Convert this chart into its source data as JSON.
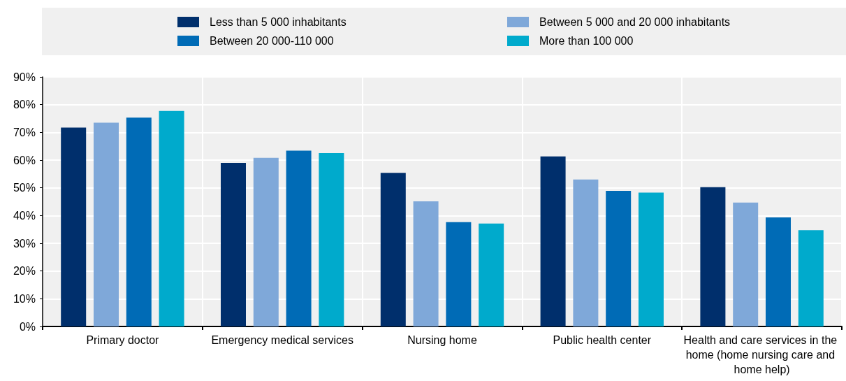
{
  "chart_data": {
    "type": "bar",
    "categories": [
      "Primary doctor",
      "Emergency medical services",
      "Nursing home",
      "Public health center",
      "Health and care services in the home (home nursing care and home help)"
    ],
    "series": [
      {
        "name": "Less than 5 000 inhabitants",
        "color": "#002f6c",
        "values": [
          71.7,
          59.0,
          55.4,
          61.3,
          50.2
        ]
      },
      {
        "name": "Between 5 000 and 20 000 inhabitants",
        "color": "#7fa8d9",
        "values": [
          73.5,
          60.8,
          45.1,
          53.0,
          44.7
        ]
      },
      {
        "name": "Between 20 000-110 000",
        "color": "#006bb6",
        "values": [
          75.3,
          63.4,
          37.6,
          48.9,
          39.3
        ]
      },
      {
        "name": "More than 100 000",
        "color": "#00aacc",
        "values": [
          77.7,
          62.5,
          37.1,
          48.3,
          34.7
        ]
      }
    ],
    "ylim": [
      0,
      90
    ],
    "yticks": [
      {
        "value": 0,
        "label": "0%"
      },
      {
        "value": 10,
        "label": "10%"
      },
      {
        "value": 20,
        "label": "20%"
      },
      {
        "value": 30,
        "label": "30%"
      },
      {
        "value": 40,
        "label": "40%"
      },
      {
        "value": 50,
        "label": "50%"
      },
      {
        "value": 60,
        "label": "60%"
      },
      {
        "value": 70,
        "label": "70%"
      },
      {
        "value": 80,
        "label": "80%"
      },
      {
        "value": 90,
        "label": "90%"
      }
    ],
    "grid": true,
    "legend": "top"
  }
}
